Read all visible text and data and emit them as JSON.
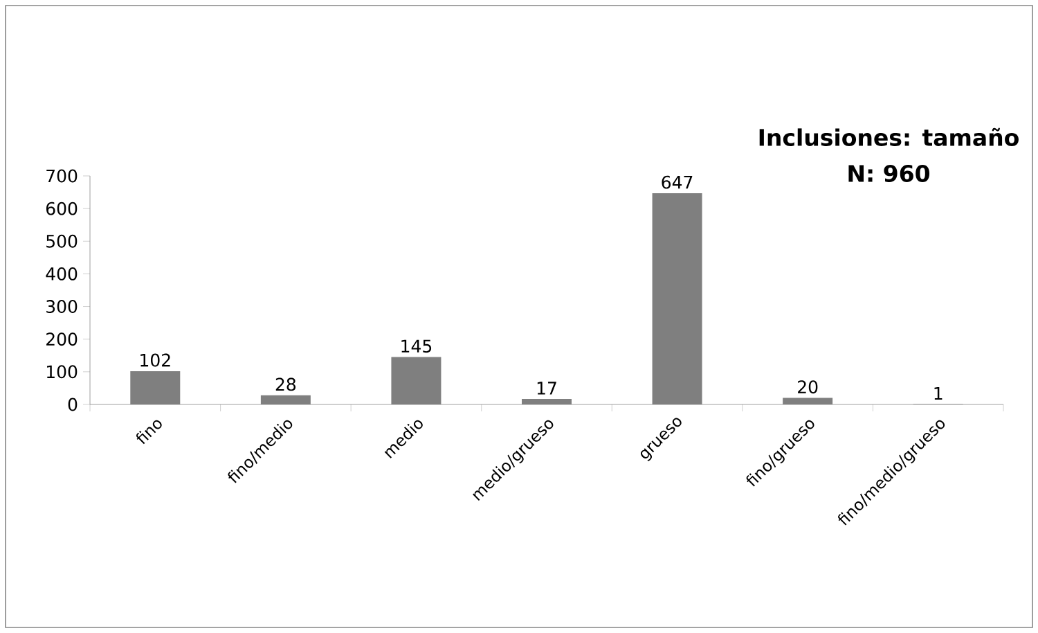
{
  "chart_data": {
    "type": "bar",
    "title": "Inclusiones: tamaño",
    "subtitle": "N: 960",
    "categories": [
      "fino",
      "fino/medio",
      "medio",
      "medio/grueso",
      "grueso",
      "fino/grueso",
      "fino/medio/grueso"
    ],
    "values": [
      102,
      28,
      145,
      17,
      647,
      20,
      1
    ],
    "color": "#7f7f7f",
    "ylim": [
      0,
      700
    ],
    "yticks": [
      0,
      100,
      200,
      300,
      400,
      500,
      600,
      700
    ],
    "data_labels": true,
    "grid": false
  }
}
